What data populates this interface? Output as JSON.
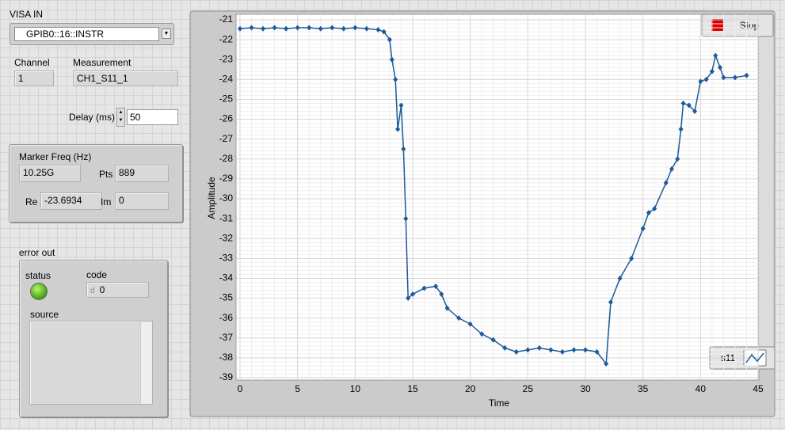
{
  "visa": {
    "label": "VISA IN",
    "value": "GPIB0::16::INSTR"
  },
  "channel": {
    "label": "Channel",
    "value": "1"
  },
  "measurement": {
    "label": "Measurement",
    "value": "CH1_S11_1"
  },
  "delay": {
    "label": "Delay (ms)",
    "value": "50"
  },
  "marker": {
    "label": "Marker Freq (Hz)",
    "value": "10.25G",
    "pts_label": "Pts",
    "pts": "889",
    "re_label": "Re",
    "re": "-23.6934",
    "im_label": "Im",
    "im": "0"
  },
  "error_out": {
    "label": "error out",
    "status_label": "status",
    "code_label": "code",
    "code_radix": "d",
    "code": "0",
    "source_label": "source"
  },
  "stop_button": "Stop",
  "chart_data": {
    "type": "line",
    "xlabel": "Time",
    "ylabel": "Amplitude",
    "x": [
      0,
      1,
      2,
      3,
      4,
      5,
      6,
      7,
      8,
      9,
      10,
      11,
      12,
      12.5,
      13,
      13.2,
      13.5,
      13.7,
      14,
      14.2,
      14.4,
      14.6,
      15,
      16,
      17,
      17.5,
      18,
      19,
      20,
      21,
      22,
      23,
      24,
      25,
      26,
      27,
      28,
      29,
      30,
      31,
      31.8,
      32.2,
      33,
      34,
      35,
      35.5,
      36,
      37,
      37.5,
      38,
      38.3,
      38.5,
      39,
      39.5,
      40,
      40.5,
      41,
      41.3,
      41.7,
      42,
      43,
      44
    ],
    "series": [
      {
        "name": "s11",
        "color": "#1c5a99",
        "values": [
          -21.45,
          -21.4,
          -21.45,
          -21.4,
          -21.45,
          -21.4,
          -21.4,
          -21.45,
          -21.4,
          -21.45,
          -21.4,
          -21.45,
          -21.5,
          -21.6,
          -22,
          -23,
          -24,
          -26.5,
          -25.3,
          -27.5,
          -31,
          -35,
          -34.8,
          -34.5,
          -34.4,
          -34.8,
          -35.5,
          -36,
          -36.3,
          -36.8,
          -37.1,
          -37.5,
          -37.7,
          -37.6,
          -37.5,
          -37.6,
          -37.7,
          -37.6,
          -37.6,
          -37.7,
          -38.3,
          -35.2,
          -34,
          -33,
          -31.5,
          -30.7,
          -30.5,
          -29.2,
          -28.5,
          -28,
          -26.5,
          -25.2,
          -25.3,
          -25.6,
          -24.1,
          -24,
          -23.6,
          -22.8,
          -23.4,
          -23.9,
          -23.9,
          -23.8
        ]
      }
    ],
    "xlim": [
      0,
      45
    ],
    "xticks": [
      0,
      5,
      10,
      15,
      20,
      25,
      30,
      35,
      40,
      45
    ],
    "ylim": [
      -39,
      -21
    ],
    "yticks": [
      -21,
      -22,
      -23,
      -24,
      -25,
      -26,
      -27,
      -28,
      -29,
      -30,
      -31,
      -32,
      -33,
      -34,
      -35,
      -36,
      -37,
      -38,
      -39
    ],
    "grid": true
  }
}
